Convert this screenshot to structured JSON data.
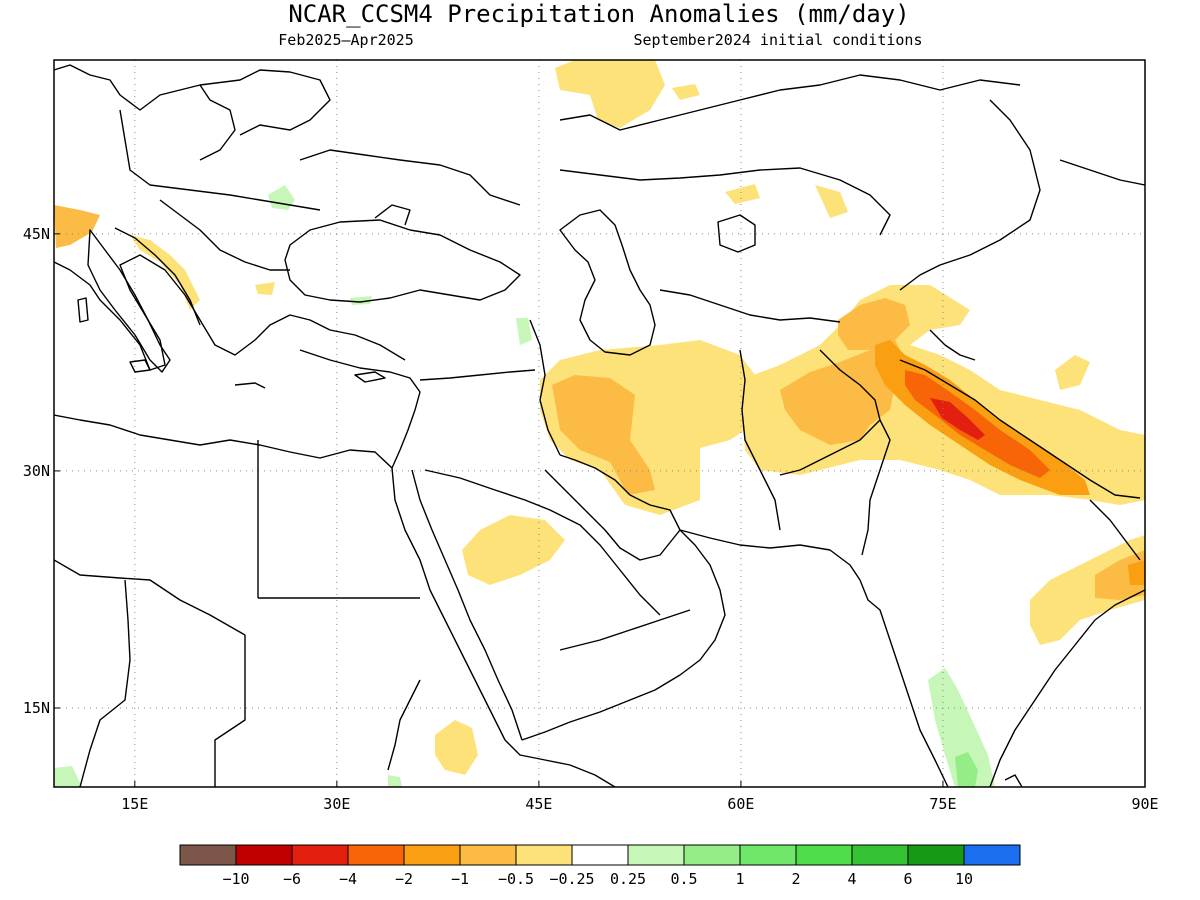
{
  "header": {
    "title": "NCAR_CCSM4 Precipitation Anomalies (mm/day)",
    "period": "Feb2025–Apr2025",
    "initial_conditions": "September2024 initial conditions"
  },
  "map": {
    "region": {
      "lon_min": 9,
      "lon_max": 90,
      "lat_min": 10,
      "lat_max": 56
    },
    "longitude_ticks": [
      {
        "value": 15,
        "label": "15E"
      },
      {
        "value": 30,
        "label": "30E"
      },
      {
        "value": 45,
        "label": "45E"
      },
      {
        "value": 60,
        "label": "60E"
      },
      {
        "value": 75,
        "label": "75E"
      },
      {
        "value": 90,
        "label": "90E"
      }
    ],
    "latitude_ticks": [
      {
        "value": 45,
        "label": "45N"
      },
      {
        "value": 30,
        "label": "30N"
      },
      {
        "value": 15,
        "label": "15N"
      }
    ],
    "gridlines": true,
    "gridline_style": "dotted"
  },
  "legend": {
    "colors": [
      "#7b5649",
      "#c00000",
      "#e32010",
      "#f86408",
      "#fa9e12",
      "#fbbb44",
      "#fde27a",
      "#ffffff",
      "#c6f7b8",
      "#95ed88",
      "#6fe86a",
      "#4fde4a",
      "#35c235",
      "#169a16",
      "#1c6ef0"
    ],
    "labels": [
      "−10",
      "−6",
      "−4",
      "−2",
      "−1",
      "−0.5",
      "−0.25",
      "0.25",
      "0.5",
      "1",
      "2",
      "4",
      "6",
      "10"
    ]
  }
}
